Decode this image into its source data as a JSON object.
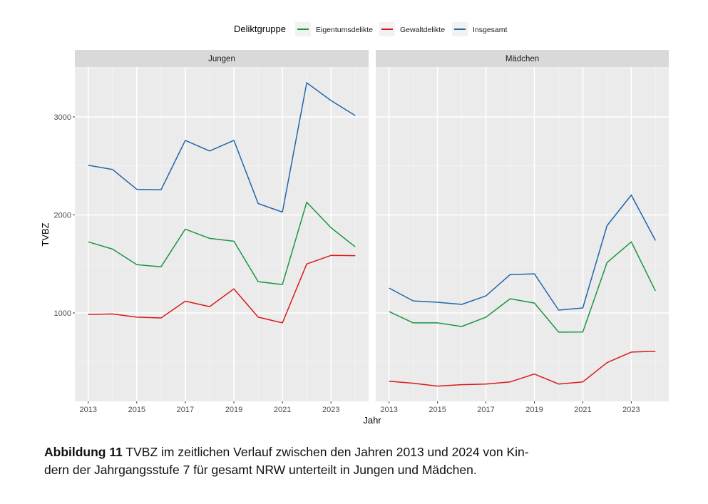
{
  "chart_data": {
    "type": "line",
    "xlabel": "Jahr",
    "ylabel": "TVBZ",
    "ylim": [
      100,
      3500
    ],
    "xlim": [
      2012.45,
      2024.55
    ],
    "x_ticks": [
      "2013",
      "2015",
      "2017",
      "2019",
      "2021",
      "2023"
    ],
    "y_ticks": [
      "1000",
      "2000",
      "3000"
    ],
    "grid": true,
    "legend": {
      "title": "Deliktgruppe",
      "placement": "top",
      "entries": [
        {
          "name": "Eigentumsdelikte",
          "color": "#1a9641"
        },
        {
          "name": "Gewaltdelikte",
          "color": "#d7191c"
        },
        {
          "name": "Insgesamt",
          "color": "#2166ac"
        }
      ]
    },
    "x": [
      2013,
      2014,
      2015,
      2016,
      2017,
      2018,
      2019,
      2020,
      2021,
      2022,
      2023,
      2024
    ],
    "facets": [
      {
        "label": "Jungen",
        "series": [
          {
            "name": "Eigentumsdelikte",
            "values": [
              1725,
              1652,
              1493,
              1471,
              1855,
              1761,
              1732,
              1319,
              1290,
              2130,
              1870,
              1674
            ]
          },
          {
            "name": "Gewaltdelikte",
            "values": [
              985,
              990,
              957,
              949,
              1120,
              1065,
              1246,
              957,
              899,
              1500,
              1587,
              1585
            ]
          },
          {
            "name": "Insgesamt",
            "values": [
              2507,
              2464,
              2261,
              2257,
              2761,
              2652,
              2761,
              2116,
              2029,
              3348,
              3167,
              3014
            ]
          }
        ]
      },
      {
        "label": "Mädchen",
        "series": [
          {
            "name": "Eigentumsdelikte",
            "values": [
              1014,
              899,
              899,
              862,
              957,
              1145,
              1101,
              804,
              806,
              1514,
              1725,
              1225
            ]
          },
          {
            "name": "Gewaltdelikte",
            "values": [
              304,
              283,
              254,
              268,
              275,
              297,
              377,
              275,
              297,
              493,
              601,
              609
            ]
          },
          {
            "name": "Insgesamt",
            "values": [
              1254,
              1123,
              1109,
              1087,
              1174,
              1391,
              1399,
              1029,
              1051,
              1891,
              2203,
              1739
            ]
          }
        ]
      }
    ]
  },
  "caption": {
    "label": "Abbildung 11",
    "text": " TVBZ im zeitlichen Verlauf zwischen den Jahren 2013 und 2024 von Kin-dern der Jahrgangsstufe 7 für gesamt NRW unterteilt in Jungen und Mädchen."
  },
  "caption_lines": [
    " TVBZ im zeitlichen Verlauf zwischen den Jahren 2013 und 2024 von Kin-",
    "dern der Jahrgangsstufe 7 für gesamt NRW unterteilt in Jungen und Mädchen."
  ]
}
